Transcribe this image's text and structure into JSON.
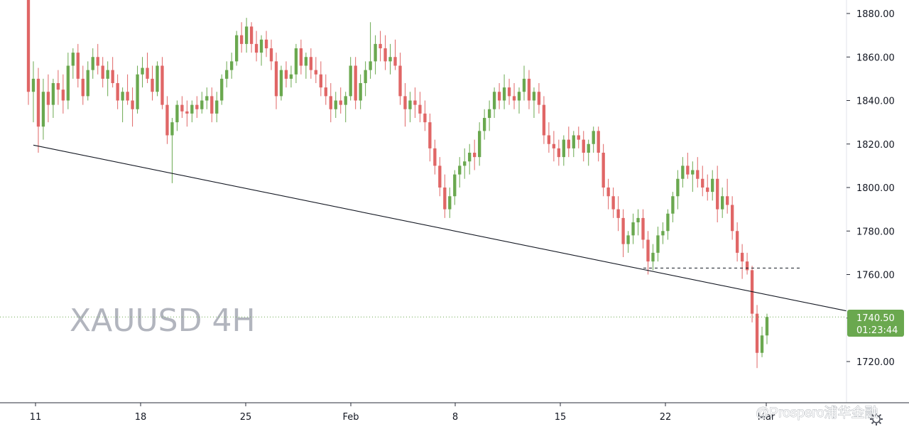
{
  "chart_data": {
    "type": "candlestick",
    "symbol_label": "XAUUSD 4H",
    "ylim": [
      1702,
      1885
    ],
    "y_ticks": [
      "1720.00",
      "1740.00",
      "1760.00",
      "1780.00",
      "1800.00",
      "1820.00",
      "1840.00",
      "1860.00",
      "1880.00"
    ],
    "x_ticks": [
      "11",
      "18",
      "25",
      "Feb",
      "8",
      "15",
      "22",
      "Mar"
    ],
    "current_price": "1740.50",
    "countdown": "01:23:44",
    "colors": {
      "up": "#6aa84f",
      "down": "#e06666",
      "price_tag": "#6aa84f",
      "trendline": "#131722"
    },
    "trendline": {
      "from": {
        "date": "Jan 11",
        "price": 1819.5
      },
      "to": {
        "date": "Mar 1",
        "price": 1744
      }
    },
    "support_level": {
      "price": 1763,
      "from": "Feb 20",
      "to": "Mar 1"
    },
    "candles_note": "approximate sequence of 4H candles, open-high-low-close in USD",
    "candles": [
      [
        1892,
        1895,
        1838,
        1844
      ],
      [
        1844,
        1858,
        1830,
        1850
      ],
      [
        1850,
        1855,
        1816,
        1828
      ],
      [
        1828,
        1850,
        1822,
        1844
      ],
      [
        1844,
        1852,
        1830,
        1838
      ],
      [
        1838,
        1850,
        1832,
        1848
      ],
      [
        1848,
        1854,
        1838,
        1845
      ],
      [
        1845,
        1852,
        1834,
        1840
      ],
      [
        1840,
        1862,
        1836,
        1856
      ],
      [
        1856,
        1864,
        1850,
        1862
      ],
      [
        1862,
        1866,
        1846,
        1850
      ],
      [
        1850,
        1856,
        1838,
        1842
      ],
      [
        1842,
        1858,
        1840,
        1854
      ],
      [
        1854,
        1864,
        1850,
        1860
      ],
      [
        1860,
        1866,
        1852,
        1856
      ],
      [
        1856,
        1860,
        1846,
        1850
      ],
      [
        1850,
        1858,
        1842,
        1854
      ],
      [
        1854,
        1860,
        1846,
        1848
      ],
      [
        1848,
        1852,
        1836,
        1840
      ],
      [
        1840,
        1846,
        1830,
        1844
      ],
      [
        1844,
        1852,
        1838,
        1840
      ],
      [
        1840,
        1846,
        1828,
        1836
      ],
      [
        1836,
        1856,
        1834,
        1852
      ],
      [
        1852,
        1860,
        1846,
        1855
      ],
      [
        1855,
        1862,
        1848,
        1850
      ],
      [
        1850,
        1856,
        1840,
        1844
      ],
      [
        1844,
        1858,
        1842,
        1856
      ],
      [
        1856,
        1860,
        1836,
        1838
      ],
      [
        1838,
        1842,
        1820,
        1824
      ],
      [
        1824,
        1832,
        1802,
        1830
      ],
      [
        1830,
        1840,
        1826,
        1838
      ],
      [
        1838,
        1842,
        1832,
        1835
      ],
      [
        1835,
        1840,
        1828,
        1834
      ],
      [
        1834,
        1840,
        1830,
        1838
      ],
      [
        1838,
        1842,
        1832,
        1836
      ],
      [
        1836,
        1844,
        1834,
        1840
      ],
      [
        1840,
        1846,
        1836,
        1842
      ],
      [
        1842,
        1846,
        1830,
        1834
      ],
      [
        1834,
        1844,
        1830,
        1840
      ],
      [
        1840,
        1852,
        1838,
        1850
      ],
      [
        1850,
        1858,
        1846,
        1854
      ],
      [
        1854,
        1862,
        1850,
        1858
      ],
      [
        1858,
        1872,
        1856,
        1870
      ],
      [
        1870,
        1876,
        1862,
        1866
      ],
      [
        1866,
        1878,
        1862,
        1874
      ],
      [
        1874,
        1876,
        1862,
        1866
      ],
      [
        1866,
        1872,
        1858,
        1862
      ],
      [
        1862,
        1870,
        1856,
        1868
      ],
      [
        1868,
        1872,
        1860,
        1864
      ],
      [
        1864,
        1868,
        1854,
        1858
      ],
      [
        1858,
        1862,
        1836,
        1842
      ],
      [
        1842,
        1856,
        1840,
        1854
      ],
      [
        1854,
        1858,
        1846,
        1850
      ],
      [
        1850,
        1856,
        1846,
        1852
      ],
      [
        1852,
        1866,
        1848,
        1864
      ],
      [
        1864,
        1868,
        1852,
        1856
      ],
      [
        1856,
        1862,
        1850,
        1860
      ],
      [
        1860,
        1864,
        1850,
        1854
      ],
      [
        1854,
        1860,
        1848,
        1852
      ],
      [
        1852,
        1858,
        1842,
        1846
      ],
      [
        1846,
        1852,
        1838,
        1842
      ],
      [
        1842,
        1848,
        1830,
        1836
      ],
      [
        1836,
        1844,
        1832,
        1840
      ],
      [
        1840,
        1846,
        1834,
        1838
      ],
      [
        1838,
        1844,
        1830,
        1842
      ],
      [
        1842,
        1860,
        1840,
        1856
      ],
      [
        1856,
        1860,
        1836,
        1840
      ],
      [
        1840,
        1852,
        1836,
        1848
      ],
      [
        1848,
        1858,
        1842,
        1854
      ],
      [
        1854,
        1876,
        1850,
        1858
      ],
      [
        1858,
        1870,
        1852,
        1866
      ],
      [
        1866,
        1872,
        1858,
        1864
      ],
      [
        1864,
        1870,
        1854,
        1858
      ],
      [
        1858,
        1866,
        1852,
        1860
      ],
      [
        1860,
        1868,
        1854,
        1856
      ],
      [
        1856,
        1862,
        1838,
        1842
      ],
      [
        1842,
        1848,
        1828,
        1836
      ],
      [
        1836,
        1844,
        1830,
        1840
      ],
      [
        1840,
        1846,
        1832,
        1838
      ],
      [
        1838,
        1844,
        1830,
        1834
      ],
      [
        1834,
        1840,
        1826,
        1830
      ],
      [
        1830,
        1834,
        1812,
        1818
      ],
      [
        1818,
        1822,
        1806,
        1810
      ],
      [
        1810,
        1814,
        1796,
        1800
      ],
      [
        1800,
        1806,
        1786,
        1790
      ],
      [
        1790,
        1800,
        1786,
        1796
      ],
      [
        1796,
        1808,
        1792,
        1806
      ],
      [
        1806,
        1814,
        1800,
        1810
      ],
      [
        1810,
        1818,
        1804,
        1812
      ],
      [
        1812,
        1820,
        1806,
        1816
      ],
      [
        1816,
        1822,
        1808,
        1814
      ],
      [
        1814,
        1830,
        1810,
        1826
      ],
      [
        1826,
        1836,
        1822,
        1832
      ],
      [
        1832,
        1840,
        1826,
        1836
      ],
      [
        1836,
        1846,
        1832,
        1844
      ],
      [
        1844,
        1848,
        1836,
        1840
      ],
      [
        1840,
        1852,
        1836,
        1846
      ],
      [
        1846,
        1850,
        1838,
        1842
      ],
      [
        1842,
        1848,
        1836,
        1840
      ],
      [
        1840,
        1846,
        1834,
        1844
      ],
      [
        1844,
        1856,
        1840,
        1850
      ],
      [
        1850,
        1854,
        1836,
        1840
      ],
      [
        1840,
        1846,
        1832,
        1844
      ],
      [
        1844,
        1848,
        1834,
        1838
      ],
      [
        1838,
        1842,
        1820,
        1824
      ],
      [
        1824,
        1830,
        1816,
        1820
      ],
      [
        1820,
        1826,
        1812,
        1818
      ],
      [
        1818,
        1822,
        1810,
        1814
      ],
      [
        1814,
        1824,
        1810,
        1822
      ],
      [
        1822,
        1828,
        1814,
        1818
      ],
      [
        1818,
        1826,
        1814,
        1824
      ],
      [
        1824,
        1828,
        1818,
        1822
      ],
      [
        1822,
        1826,
        1812,
        1816
      ],
      [
        1816,
        1822,
        1810,
        1820
      ],
      [
        1820,
        1828,
        1816,
        1826
      ],
      [
        1826,
        1828,
        1812,
        1816
      ],
      [
        1816,
        1820,
        1796,
        1800
      ],
      [
        1800,
        1804,
        1790,
        1796
      ],
      [
        1796,
        1800,
        1786,
        1790
      ],
      [
        1790,
        1796,
        1780,
        1786
      ],
      [
        1786,
        1790,
        1768,
        1774
      ],
      [
        1774,
        1780,
        1770,
        1778
      ],
      [
        1778,
        1788,
        1774,
        1784
      ],
      [
        1784,
        1790,
        1778,
        1786
      ],
      [
        1786,
        1790,
        1772,
        1776
      ],
      [
        1776,
        1780,
        1760,
        1766
      ],
      [
        1766,
        1774,
        1762,
        1770
      ],
      [
        1770,
        1782,
        1766,
        1778
      ],
      [
        1778,
        1784,
        1774,
        1780
      ],
      [
        1780,
        1790,
        1776,
        1788
      ],
      [
        1788,
        1798,
        1784,
        1796
      ],
      [
        1796,
        1808,
        1790,
        1804
      ],
      [
        1804,
        1814,
        1800,
        1810
      ],
      [
        1810,
        1816,
        1804,
        1806
      ],
      [
        1806,
        1812,
        1798,
        1808
      ],
      [
        1808,
        1814,
        1800,
        1804
      ],
      [
        1804,
        1810,
        1796,
        1800
      ],
      [
        1800,
        1806,
        1794,
        1798
      ],
      [
        1798,
        1808,
        1794,
        1804
      ],
      [
        1804,
        1810,
        1784,
        1790
      ],
      [
        1790,
        1800,
        1786,
        1796
      ],
      [
        1796,
        1804,
        1788,
        1792
      ],
      [
        1792,
        1796,
        1776,
        1780
      ],
      [
        1780,
        1784,
        1766,
        1770
      ],
      [
        1770,
        1774,
        1758,
        1766
      ],
      [
        1766,
        1770,
        1760,
        1762
      ],
      [
        1762,
        1764,
        1738,
        1742
      ],
      [
        1742,
        1746,
        1717,
        1724
      ],
      [
        1724,
        1736,
        1722,
        1732
      ],
      [
        1732,
        1742,
        1728,
        1740.5
      ]
    ]
  }
}
